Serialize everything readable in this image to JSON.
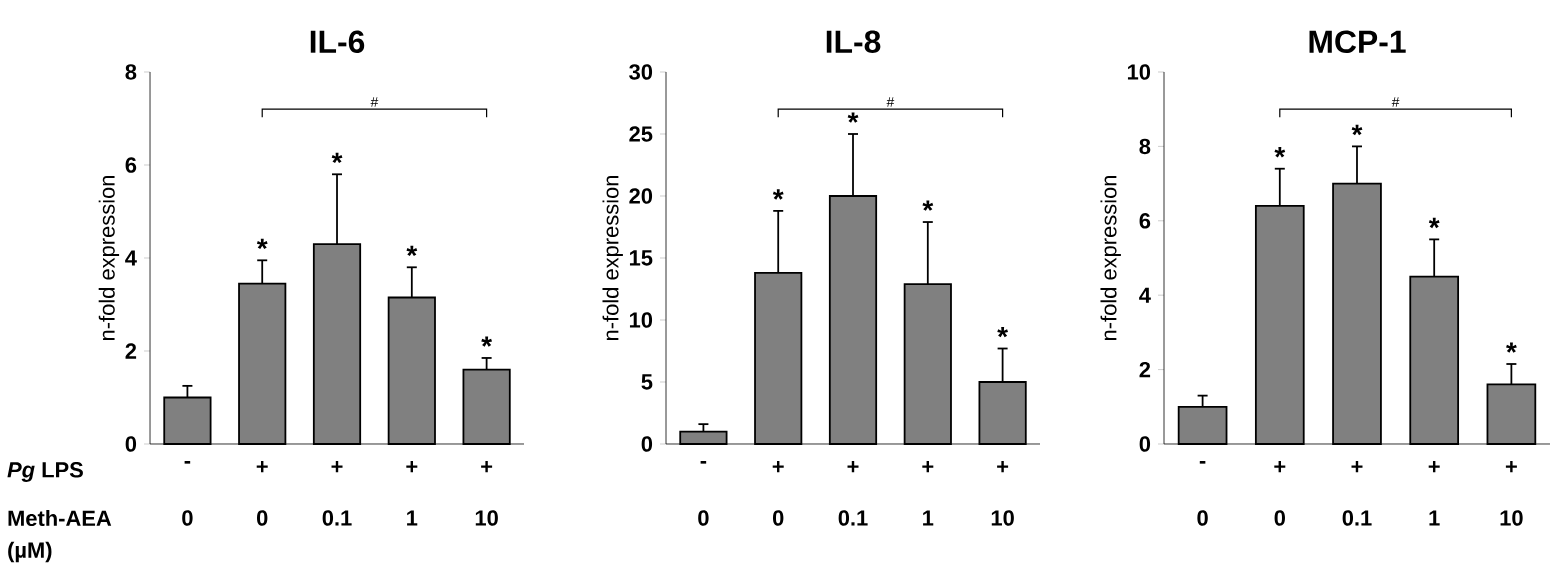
{
  "chart_data": [
    {
      "type": "bar",
      "title": "IL-6",
      "ylabel": "n-fold expression",
      "categories": [
        "-",
        "+",
        "+",
        "+",
        "+"
      ],
      "values": [
        1.0,
        3.45,
        4.3,
        3.15,
        1.6
      ],
      "errors": [
        0.25,
        0.5,
        1.5,
        0.65,
        0.25
      ],
      "color": "#808080",
      "ylim": [
        0,
        8
      ],
      "yticks": [
        0,
        2,
        4,
        6,
        8
      ],
      "annotations": [
        "*",
        "*",
        "*",
        "*",
        "#",
        "0",
        "0",
        "0.1",
        "1",
        "10",
        "*Pg* LPS",
        "Meth-AEA",
        "(µM)"
      ]
    },
    {
      "type": "bar",
      "title": "IL-8",
      "ylabel": "n-fold expression",
      "categories": [
        "-",
        "+",
        "+",
        "+",
        "+"
      ],
      "values": [
        1.0,
        13.8,
        20.0,
        12.9,
        5.0
      ],
      "errors": [
        0.6,
        5.0,
        5.0,
        5.0,
        2.7
      ],
      "color": "#808080",
      "ylim": [
        0,
        30
      ],
      "yticks": [
        0,
        5,
        10,
        15,
        20,
        25,
        30
      ],
      "annotations": [
        "*",
        "*",
        "*",
        "*",
        "#",
        "0",
        "0",
        "0.1",
        "1",
        "10"
      ]
    },
    {
      "type": "bar",
      "title": "MCP-1",
      "ylabel": "n-fold expression",
      "categories": [
        "-",
        "+",
        "+",
        "+",
        "+"
      ],
      "values": [
        1.0,
        6.4,
        7.0,
        4.5,
        1.6
      ],
      "errors": [
        0.3,
        1.0,
        1.0,
        1.0,
        0.55
      ],
      "color": "#808080",
      "ylim": [
        0,
        10
      ],
      "yticks": [
        0,
        2,
        4,
        6,
        8,
        10
      ],
      "annotations": [
        "*",
        "*",
        "*",
        "*",
        "#",
        "0",
        "0",
        "0.1",
        "1",
        "10"
      ]
    }
  ]
}
